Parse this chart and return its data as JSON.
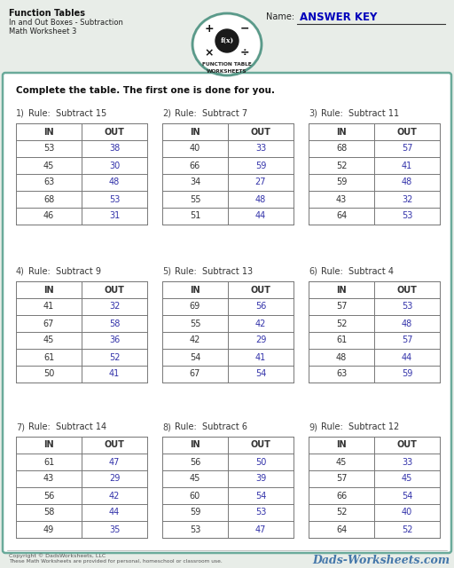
{
  "title_line1": "Function Tables",
  "title_line2": "In and Out Boxes - Subtraction",
  "title_line3": "Math Worksheet 3",
  "name_label": "Name:",
  "answer_key": "ANSWER KEY",
  "instruction": "Complete the table. The first one is done for you.",
  "tables": [
    {
      "num": "1",
      "rule": "Subtract 15",
      "in_vals": [
        53,
        45,
        63,
        68,
        46
      ],
      "out_vals": [
        38,
        30,
        48,
        53,
        31
      ]
    },
    {
      "num": "2",
      "rule": "Subtract 7",
      "in_vals": [
        40,
        66,
        34,
        55,
        51
      ],
      "out_vals": [
        33,
        59,
        27,
        48,
        44
      ]
    },
    {
      "num": "3",
      "rule": "Subtract 11",
      "in_vals": [
        68,
        52,
        59,
        43,
        64
      ],
      "out_vals": [
        57,
        41,
        48,
        32,
        53
      ]
    },
    {
      "num": "4",
      "rule": "Subtract 9",
      "in_vals": [
        41,
        67,
        45,
        61,
        50
      ],
      "out_vals": [
        32,
        58,
        36,
        52,
        41
      ]
    },
    {
      "num": "5",
      "rule": "Subtract 13",
      "in_vals": [
        69,
        55,
        42,
        54,
        67
      ],
      "out_vals": [
        56,
        42,
        29,
        41,
        54
      ]
    },
    {
      "num": "6",
      "rule": "Subtract 4",
      "in_vals": [
        57,
        52,
        61,
        48,
        63
      ],
      "out_vals": [
        53,
        48,
        57,
        44,
        59
      ]
    },
    {
      "num": "7",
      "rule": "Subtract 14",
      "in_vals": [
        61,
        43,
        56,
        58,
        49
      ],
      "out_vals": [
        47,
        29,
        42,
        44,
        35
      ]
    },
    {
      "num": "8",
      "rule": "Subtract 6",
      "in_vals": [
        56,
        45,
        60,
        59,
        53
      ],
      "out_vals": [
        50,
        39,
        54,
        53,
        47
      ]
    },
    {
      "num": "9",
      "rule": "Subtract 12",
      "in_vals": [
        45,
        57,
        66,
        52,
        64
      ],
      "out_vals": [
        33,
        45,
        54,
        40,
        52
      ]
    }
  ],
  "bg_color": "#e8ede8",
  "box_bg": "#ffffff",
  "header_color": "#333333",
  "in_color": "#333333",
  "out_color": "#3333aa",
  "teal_color": "#5a9a8a",
  "border_color": "#6aaa9a",
  "rule_color": "#333333",
  "num_color": "#444444",
  "footer_color": "#555555",
  "footer_logo_color": "#4477aa"
}
